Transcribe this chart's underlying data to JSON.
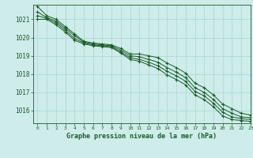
{
  "title": "Graphe pression niveau de la mer (hPa)",
  "bg_color": "#ceecea",
  "grid_color": "#b0d8d4",
  "line_color": "#1a5c28",
  "xlim": [
    -0.5,
    23
  ],
  "ylim": [
    1015.3,
    1021.8
  ],
  "yticks": [
    1016,
    1017,
    1018,
    1019,
    1020,
    1021
  ],
  "xticks": [
    0,
    1,
    2,
    3,
    4,
    5,
    6,
    7,
    8,
    9,
    10,
    11,
    12,
    13,
    14,
    15,
    16,
    17,
    18,
    19,
    20,
    21,
    22,
    23
  ],
  "series": [
    [
      1021.7,
      1021.2,
      1021.0,
      1020.6,
      1020.2,
      1019.8,
      1019.7,
      1019.65,
      1019.6,
      1019.4,
      1019.1,
      1019.1,
      1019.0,
      1018.9,
      1018.6,
      1018.35,
      1018.05,
      1017.5,
      1017.25,
      1016.85,
      1016.35,
      1016.1,
      1015.85,
      1015.75
    ],
    [
      1021.4,
      1021.1,
      1020.9,
      1020.5,
      1020.1,
      1019.75,
      1019.65,
      1019.6,
      1019.55,
      1019.3,
      1019.0,
      1018.95,
      1018.8,
      1018.65,
      1018.35,
      1018.1,
      1017.8,
      1017.25,
      1017.0,
      1016.6,
      1016.1,
      1015.85,
      1015.65,
      1015.6
    ],
    [
      1021.2,
      1021.05,
      1020.8,
      1020.4,
      1019.95,
      1019.7,
      1019.6,
      1019.55,
      1019.5,
      1019.2,
      1018.9,
      1018.8,
      1018.65,
      1018.45,
      1018.15,
      1017.9,
      1017.6,
      1017.05,
      1016.8,
      1016.4,
      1015.9,
      1015.65,
      1015.55,
      1015.5
    ],
    [
      1021.0,
      1021.0,
      1020.7,
      1020.3,
      1019.85,
      1019.65,
      1019.55,
      1019.5,
      1019.45,
      1019.15,
      1018.8,
      1018.7,
      1018.5,
      1018.3,
      1017.95,
      1017.7,
      1017.4,
      1016.85,
      1016.6,
      1016.2,
      1015.7,
      1015.5,
      1015.45,
      1015.4
    ]
  ]
}
